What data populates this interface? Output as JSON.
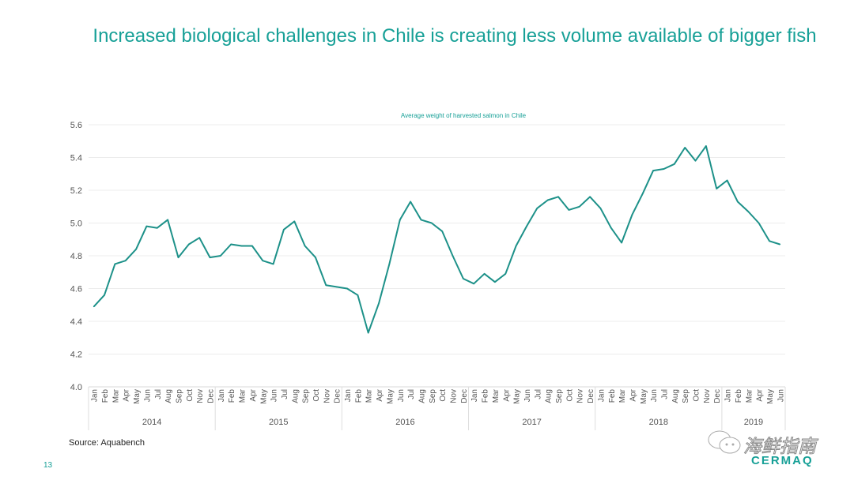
{
  "page": {
    "title": "Increased biological challenges in Chile is creating less volume available of bigger fish",
    "source": "Source: Aquabench",
    "page_number": "13",
    "logo_text": "CERMAQ",
    "watermark_text": "海鲜指南",
    "accent_color": "#17a097"
  },
  "chart_data": {
    "type": "line",
    "title": "Average weight of harvested salmon in Chile",
    "xlabel": "",
    "ylabel": "",
    "ylim": [
      4.0,
      5.6
    ],
    "yticks": [
      "4.0",
      "4.2",
      "4.4",
      "4.6",
      "4.8",
      "5.0",
      "5.2",
      "5.4",
      "5.6"
    ],
    "grid": true,
    "line_color": "#1d9189",
    "years": [
      {
        "label": "2014",
        "months": [
          "Jan",
          "Feb",
          "Mar",
          "Apr",
          "May",
          "Jun",
          "Jul",
          "Aug",
          "Sep",
          "Oct",
          "Nov",
          "Dec"
        ]
      },
      {
        "label": "2015",
        "months": [
          "Jan",
          "Feb",
          "Mar",
          "Apr",
          "May",
          "Jun",
          "Jul",
          "Aug",
          "Sep",
          "Oct",
          "Nov",
          "Dec"
        ]
      },
      {
        "label": "2016",
        "months": [
          "Jan",
          "Feb",
          "Mar",
          "Apr",
          "May",
          "Jun",
          "Jul",
          "Aug",
          "Sep",
          "Oct",
          "Nov",
          "Dec"
        ]
      },
      {
        "label": "2017",
        "months": [
          "Jan",
          "Feb",
          "Mar",
          "Apr",
          "May",
          "Jun",
          "Jul",
          "Aug",
          "Sep",
          "Oct",
          "Nov",
          "Dec"
        ]
      },
      {
        "label": "2018",
        "months": [
          "Jan",
          "Feb",
          "Mar",
          "Apr",
          "May",
          "Jun",
          "Jul",
          "Aug",
          "Sep",
          "Oct",
          "Nov",
          "Dec"
        ]
      },
      {
        "label": "2019",
        "months": [
          "Jan",
          "Feb",
          "Mar",
          "Apr",
          "May",
          "Jun"
        ]
      }
    ],
    "values": [
      4.49,
      4.56,
      4.75,
      4.77,
      4.84,
      4.98,
      4.97,
      5.02,
      4.79,
      4.87,
      4.91,
      4.79,
      4.8,
      4.87,
      4.86,
      4.86,
      4.77,
      4.75,
      4.96,
      5.01,
      4.86,
      4.79,
      4.62,
      4.61,
      4.6,
      4.56,
      4.33,
      4.51,
      4.75,
      5.02,
      5.13,
      5.02,
      5.0,
      4.95,
      4.8,
      4.66,
      4.63,
      4.69,
      4.64,
      4.69,
      4.86,
      4.98,
      5.09,
      5.14,
      5.16,
      5.08,
      5.1,
      5.16,
      5.09,
      4.97,
      4.88,
      5.05,
      5.18,
      5.32,
      5.33,
      5.36,
      5.46,
      5.38,
      5.47,
      5.21,
      5.26,
      5.13,
      5.07,
      5.0,
      4.89,
      4.87
    ]
  }
}
